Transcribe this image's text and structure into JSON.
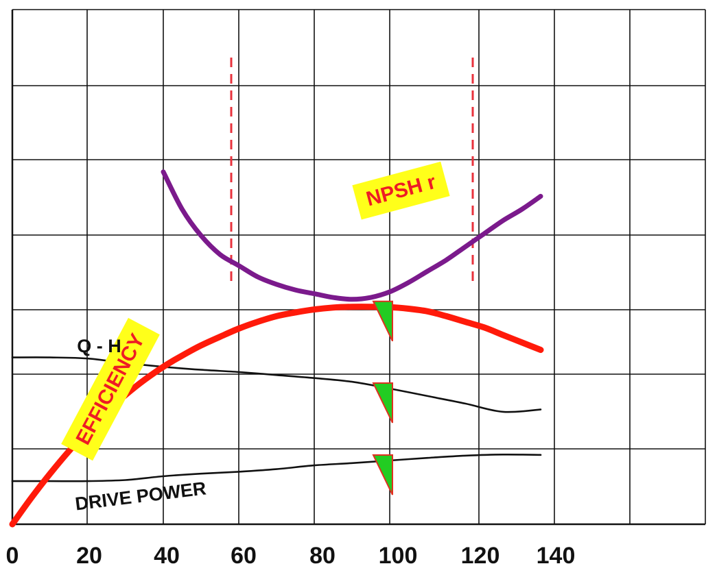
{
  "chart_data": {
    "type": "line",
    "x_ticks": [
      "0",
      "20",
      "40",
      "60",
      "80",
      "100",
      "120",
      "140"
    ],
    "xlim": [
      0,
      180
    ],
    "grid": true,
    "colors": {
      "npsh": "#7b1a8c",
      "efficiency": "#ff1a0a",
      "qh": "#111111",
      "power": "#111111",
      "limit_lines": "#e8323c",
      "marker_fill": "#22cc22",
      "marker_edge": "#e03020",
      "label_bg": "#ffff1a",
      "label_text": "#ee1c25"
    },
    "series": [
      {
        "name": "NPSH r",
        "key": "npsh",
        "x": [
          40,
          45,
          50,
          55,
          60,
          65,
          70,
          75,
          80,
          85,
          90,
          95,
          100,
          105,
          110,
          115,
          120,
          125,
          130,
          135,
          140
        ],
        "y": [
          9.4,
          8.4,
          7.7,
          7.2,
          6.9,
          6.6,
          6.4,
          6.25,
          6.15,
          6.05,
          6.0,
          6.05,
          6.2,
          6.45,
          6.75,
          7.05,
          7.4,
          7.75,
          8.1,
          8.4,
          8.75
        ]
      },
      {
        "name": "EFFICIENCY",
        "key": "efficiency",
        "x": [
          0,
          5,
          10,
          15,
          20,
          25,
          30,
          35,
          40,
          45,
          50,
          55,
          60,
          65,
          70,
          75,
          80,
          85,
          90,
          95,
          100,
          105,
          110,
          115,
          120,
          125,
          130,
          135,
          140
        ],
        "y": [
          0.0,
          0.7,
          1.35,
          1.95,
          2.5,
          3.0,
          3.45,
          3.85,
          4.2,
          4.5,
          4.77,
          5.0,
          5.22,
          5.4,
          5.55,
          5.65,
          5.73,
          5.78,
          5.8,
          5.8,
          5.79,
          5.75,
          5.68,
          5.55,
          5.4,
          5.25,
          5.05,
          4.85,
          4.65
        ]
      },
      {
        "name": "Q - H",
        "key": "qh",
        "x": [
          0,
          10,
          20,
          30,
          40,
          50,
          60,
          70,
          80,
          90,
          100,
          110,
          120,
          130,
          140
        ],
        "y": [
          4.45,
          4.45,
          4.42,
          4.3,
          4.2,
          4.12,
          4.06,
          3.98,
          3.9,
          3.8,
          3.62,
          3.42,
          3.22,
          3.0,
          3.06
        ]
      },
      {
        "name": "DRIVE POWER",
        "key": "power",
        "x": [
          0,
          10,
          20,
          30,
          40,
          50,
          60,
          70,
          80,
          90,
          100,
          110,
          120,
          130,
          140
        ],
        "y": [
          1.15,
          1.15,
          1.15,
          1.18,
          1.28,
          1.35,
          1.4,
          1.47,
          1.57,
          1.63,
          1.7,
          1.77,
          1.83,
          1.86,
          1.85
        ]
      }
    ],
    "vertical_limit_lines": [
      58,
      122
    ],
    "point_markers": [
      {
        "x": 100,
        "y": 5.8
      },
      {
        "x": 100,
        "y": 3.62
      },
      {
        "x": 100,
        "y": 1.7
      }
    ],
    "highlight_labels": [
      {
        "text": "NPSH r",
        "x": 103,
        "y": 8.9,
        "angle": -15
      },
      {
        "text": "EFFICIENCY",
        "x": 26,
        "y": 3.6,
        "angle": -62
      }
    ],
    "plain_labels": [
      {
        "text": "Q - H",
        "x": 23,
        "y": 4.75,
        "angle": 0
      },
      {
        "text": "DRIVE POWER",
        "x": 34,
        "y": 0.75,
        "angle": -7
      }
    ]
  }
}
